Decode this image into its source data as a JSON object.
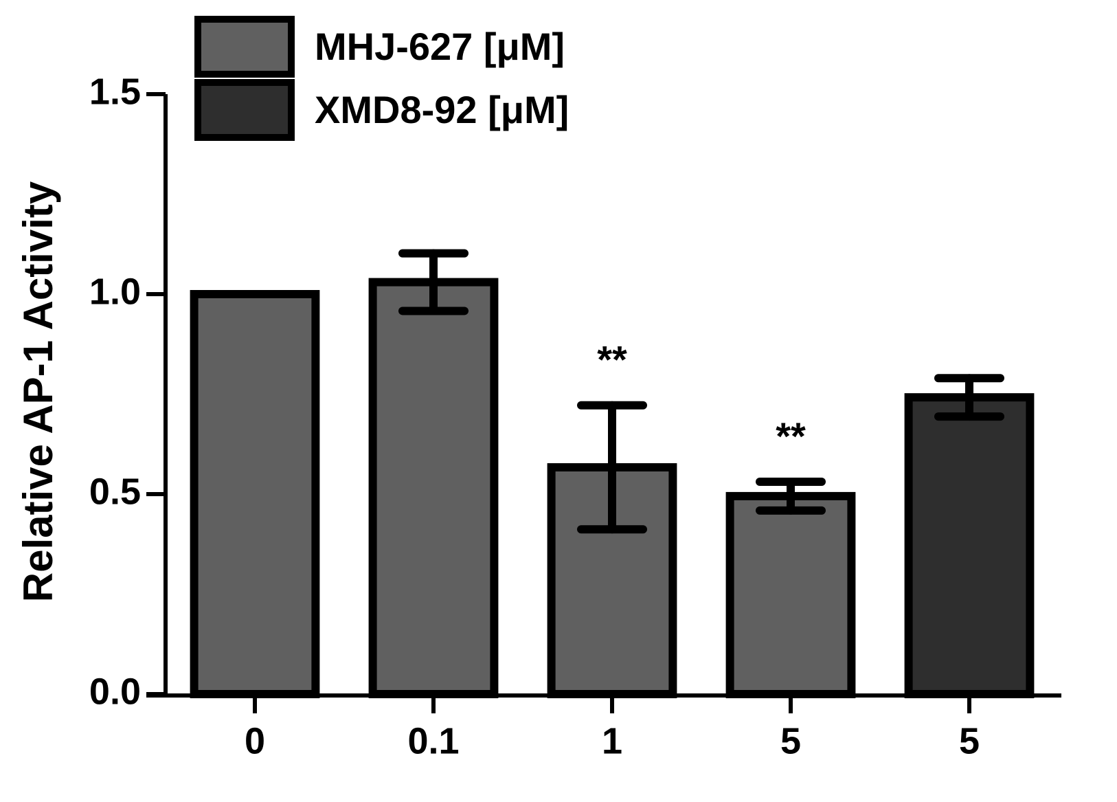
{
  "chart_data": {
    "type": "bar",
    "y_label": "Relative AP-1 Activity",
    "categories": [
      "0",
      "0.1",
      "1",
      "5",
      "5"
    ],
    "series": [
      {
        "name": "MHJ-627 [μM]",
        "color": "#606060",
        "values": [
          1.0,
          1.03,
          0.567,
          0.495,
          null
        ],
        "errors": [
          null,
          0.072,
          0.155,
          0.036,
          null
        ],
        "annotations": [
          null,
          null,
          "**",
          "**",
          null
        ]
      },
      {
        "name": "XMD8-92 [μM]",
        "color": "#2e2e2e",
        "values": [
          null,
          null,
          null,
          null,
          0.742
        ],
        "errors": [
          null,
          null,
          null,
          null,
          0.048
        ],
        "annotations": [
          null,
          null,
          null,
          null,
          null
        ]
      }
    ],
    "ylim": [
      0,
      1.5
    ],
    "yticks": [
      {
        "value": 0,
        "label": "0.0"
      },
      0.5,
      {
        "value": 1,
        "label": "1.0"
      },
      1.5
    ],
    "legend": "top-left"
  }
}
